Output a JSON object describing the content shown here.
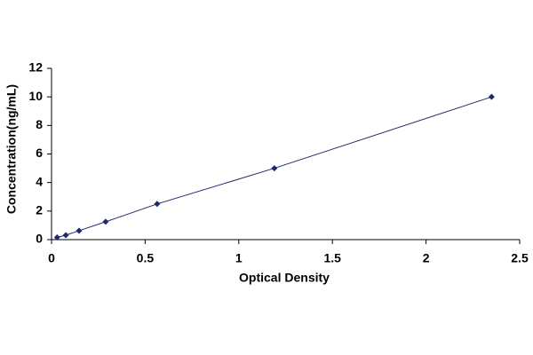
{
  "chart_data": {
    "type": "scatter",
    "x_label": "Optical Density",
    "y_label": "Concentration(ng/mL)",
    "series": [
      {
        "color": "#1f2a6b",
        "x": [
          0.03,
          0.076,
          0.147,
          0.289,
          0.564,
          1.19,
          2.35
        ],
        "values": [
          0.156,
          0.312,
          0.625,
          1.25,
          2.5,
          5,
          10
        ]
      }
    ],
    "xlim": [
      0,
      2.5
    ],
    "xticks": [
      0,
      0.5,
      1,
      1.5,
      2,
      2.5
    ],
    "ylim": [
      0,
      12
    ],
    "yticks": [
      0,
      2,
      4,
      6,
      8,
      10,
      12
    ],
    "connect": true
  }
}
